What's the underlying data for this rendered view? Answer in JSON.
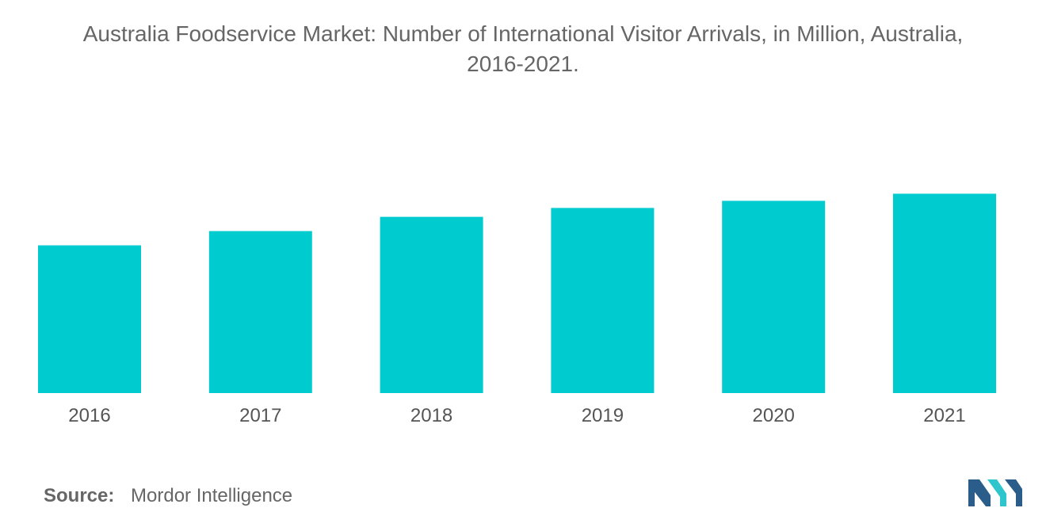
{
  "title_line1": "Australia Foodservice Market: Number of International Visitor Arrivals, in Million, Australia,",
  "title_line2": "2016-2021.",
  "source_label": "Source:",
  "source_text": "Mordor Intelligence",
  "colors": {
    "bar": "#00cccf",
    "logo_dark": "#2a5d8a",
    "logo_light": "#2ec5cc"
  },
  "chart_data": {
    "type": "bar",
    "categories": [
      "2016",
      "2017",
      "2018",
      "2019",
      "2020",
      "2021"
    ],
    "values": [
      8.3,
      9.1,
      9.9,
      10.4,
      10.8,
      11.2
    ],
    "title": "Australia Foodservice Market: Number of International Visitor Arrivals, in Million, Australia, 2016-2021.",
    "xlabel": "",
    "ylabel": "",
    "ylim": [
      0,
      13.0
    ],
    "grid": false,
    "legend": "none"
  }
}
